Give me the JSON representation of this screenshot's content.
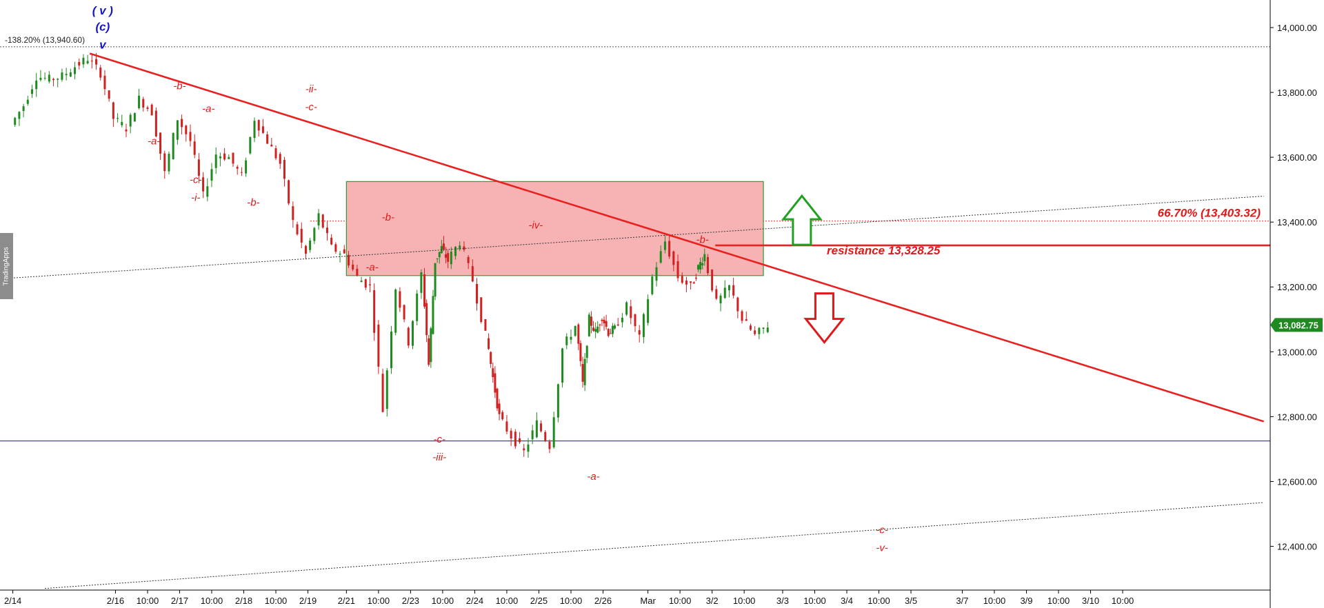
{
  "watermark": "TradingApps",
  "chart_data": {
    "type": "line",
    "style": "candlestick",
    "y_axis": {
      "position": "right",
      "ylim": [
        12265,
        14085
      ],
      "ticks": [
        "14,000.00",
        "13,800.00",
        "13,600.00",
        "13,400.00",
        "13,200.00",
        "13,000.00",
        "12,800.00",
        "12,600.00",
        "12,400.00"
      ],
      "tick_values": [
        14000,
        13800,
        13600,
        13400,
        13200,
        13000,
        12800,
        12600,
        12400
      ]
    },
    "x_axis": {
      "ticks": [
        "2/14",
        "2/16",
        "10:00",
        "2/17",
        "10:00",
        "2/18",
        "10:00",
        "2/19",
        "2/21",
        "10:00",
        "2/23",
        "10:00",
        "2/24",
        "10:00",
        "2/25",
        "10:00",
        "2/26",
        "Mar",
        "10:00",
        "3/2",
        "10:00",
        "3/3",
        "10:00",
        "3/4",
        "10:00",
        "3/5",
        "3/7",
        "10:00",
        "3/9",
        "10:00",
        "3/10",
        "10:00"
      ],
      "tick_positions": [
        0,
        16,
        21,
        26,
        31,
        36,
        41,
        46,
        52,
        57,
        62,
        67,
        72,
        77,
        82,
        87,
        92,
        99,
        104,
        109,
        114,
        120,
        125,
        130,
        135,
        140,
        148,
        153,
        158,
        163,
        168,
        173
      ],
      "domain": [
        -2,
        196
      ]
    },
    "price_series": {
      "x": [
        0,
        2,
        4,
        6,
        8,
        10,
        12,
        14,
        16,
        18,
        20,
        22,
        24,
        26,
        28,
        30,
        32,
        34,
        36,
        38,
        40,
        42,
        44,
        46,
        48,
        50,
        52,
        54,
        56,
        58,
        60,
        62,
        64,
        65,
        66,
        67,
        68,
        70,
        72,
        74,
        75,
        76,
        78,
        80,
        82,
        84,
        86,
        88,
        89,
        90,
        91,
        92,
        93,
        94,
        96,
        98,
        100,
        102,
        104,
        106,
        107,
        108,
        110,
        112,
        114,
        116,
        118
      ],
      "y": [
        13700,
        13760,
        13850,
        13840,
        13850,
        13880,
        13905,
        13860,
        13720,
        13690,
        13780,
        13740,
        13550,
        13720,
        13650,
        13480,
        13610,
        13600,
        13540,
        13720,
        13650,
        13580,
        13400,
        13300,
        13420,
        13320,
        13300,
        13230,
        13200,
        12820,
        13200,
        13030,
        13240,
        12960,
        13280,
        13320,
        13280,
        13340,
        13220,
        13050,
        12920,
        12800,
        12740,
        12690,
        12780,
        12710,
        13010,
        13080,
        12900,
        13100,
        13060,
        13110,
        13060,
        13070,
        13140,
        13040,
        13230,
        13340,
        13230,
        13200,
        13260,
        13300,
        13150,
        13200,
        13100,
        13050,
        13082
      ]
    },
    "last_price": {
      "value": 13082.75,
      "label": "13,082.75"
    },
    "reference_lines": {
      "fib_top": {
        "value": 13940.6,
        "label": "-138.20% (13,940.60)"
      },
      "fib_6670": {
        "value": 13403.32,
        "label": "66.70% (13,403.32)"
      },
      "resistance": {
        "value": 13328.25,
        "label": "resistance 13,328.25"
      },
      "support_blue": {
        "value": 12725
      }
    },
    "downtrend_line": {
      "from": {
        "x": 12,
        "y": 13920
      },
      "to": {
        "x": 195,
        "y": 12785
      }
    },
    "channel_upper": {
      "from": {
        "x": -2,
        "y": 13225
      },
      "to": {
        "x": 195,
        "y": 13480
      }
    },
    "channel_lower": {
      "from": {
        "x": 5,
        "y": 12270
      },
      "to": {
        "x": 195,
        "y": 12535
      }
    },
    "zone": {
      "x_start": 52,
      "x_end": 117,
      "y_top": 13525,
      "y_bottom": 13235
    },
    "wave_labels": [
      {
        "text": "( v )",
        "x": 14,
        "y": 14040,
        "color": "blue"
      },
      {
        "text": "(c)",
        "x": 14,
        "y": 13990,
        "color": "blue"
      },
      {
        "text": "v",
        "x": 14,
        "y": 13935,
        "color": "blue"
      },
      {
        "text": "-b-",
        "x": 26,
        "y": 13810,
        "color": "red"
      },
      {
        "text": "-a-",
        "x": 22,
        "y": 13640,
        "color": "red"
      },
      {
        "text": "-a-",
        "x": 30.5,
        "y": 13740,
        "color": "red"
      },
      {
        "text": "-c-",
        "x": 28.5,
        "y": 13520,
        "color": "red"
      },
      {
        "text": "-i-",
        "x": 28.5,
        "y": 13465,
        "color": "red"
      },
      {
        "text": "-b-",
        "x": 37.5,
        "y": 13450,
        "color": "red"
      },
      {
        "text": "-ii-",
        "x": 46.5,
        "y": 13800,
        "color": "red"
      },
      {
        "text": "-c-",
        "x": 46.5,
        "y": 13745,
        "color": "red"
      },
      {
        "text": "-b-",
        "x": 58.5,
        "y": 13405,
        "color": "red"
      },
      {
        "text": "-a-",
        "x": 56,
        "y": 13250,
        "color": "red"
      },
      {
        "text": "-iv-",
        "x": 81.5,
        "y": 13380,
        "color": "red"
      },
      {
        "text": "-b-",
        "x": 107.5,
        "y": 13335,
        "color": "red"
      },
      {
        "text": "-c-",
        "x": 66.5,
        "y": 12720,
        "color": "red"
      },
      {
        "text": "-iii-",
        "x": 66.5,
        "y": 12665,
        "color": "red"
      },
      {
        "text": "-a-",
        "x": 90.5,
        "y": 12605,
        "color": "red"
      },
      {
        "text": "-c-",
        "x": 135.5,
        "y": 12440,
        "color": "red"
      },
      {
        "text": "-v-",
        "x": 135.5,
        "y": 12385,
        "color": "red"
      }
    ],
    "arrows": [
      {
        "direction": "up",
        "color": "green",
        "x": 123,
        "y": 13400
      },
      {
        "direction": "down",
        "color": "red",
        "x": 126.5,
        "y": 13110
      }
    ]
  }
}
